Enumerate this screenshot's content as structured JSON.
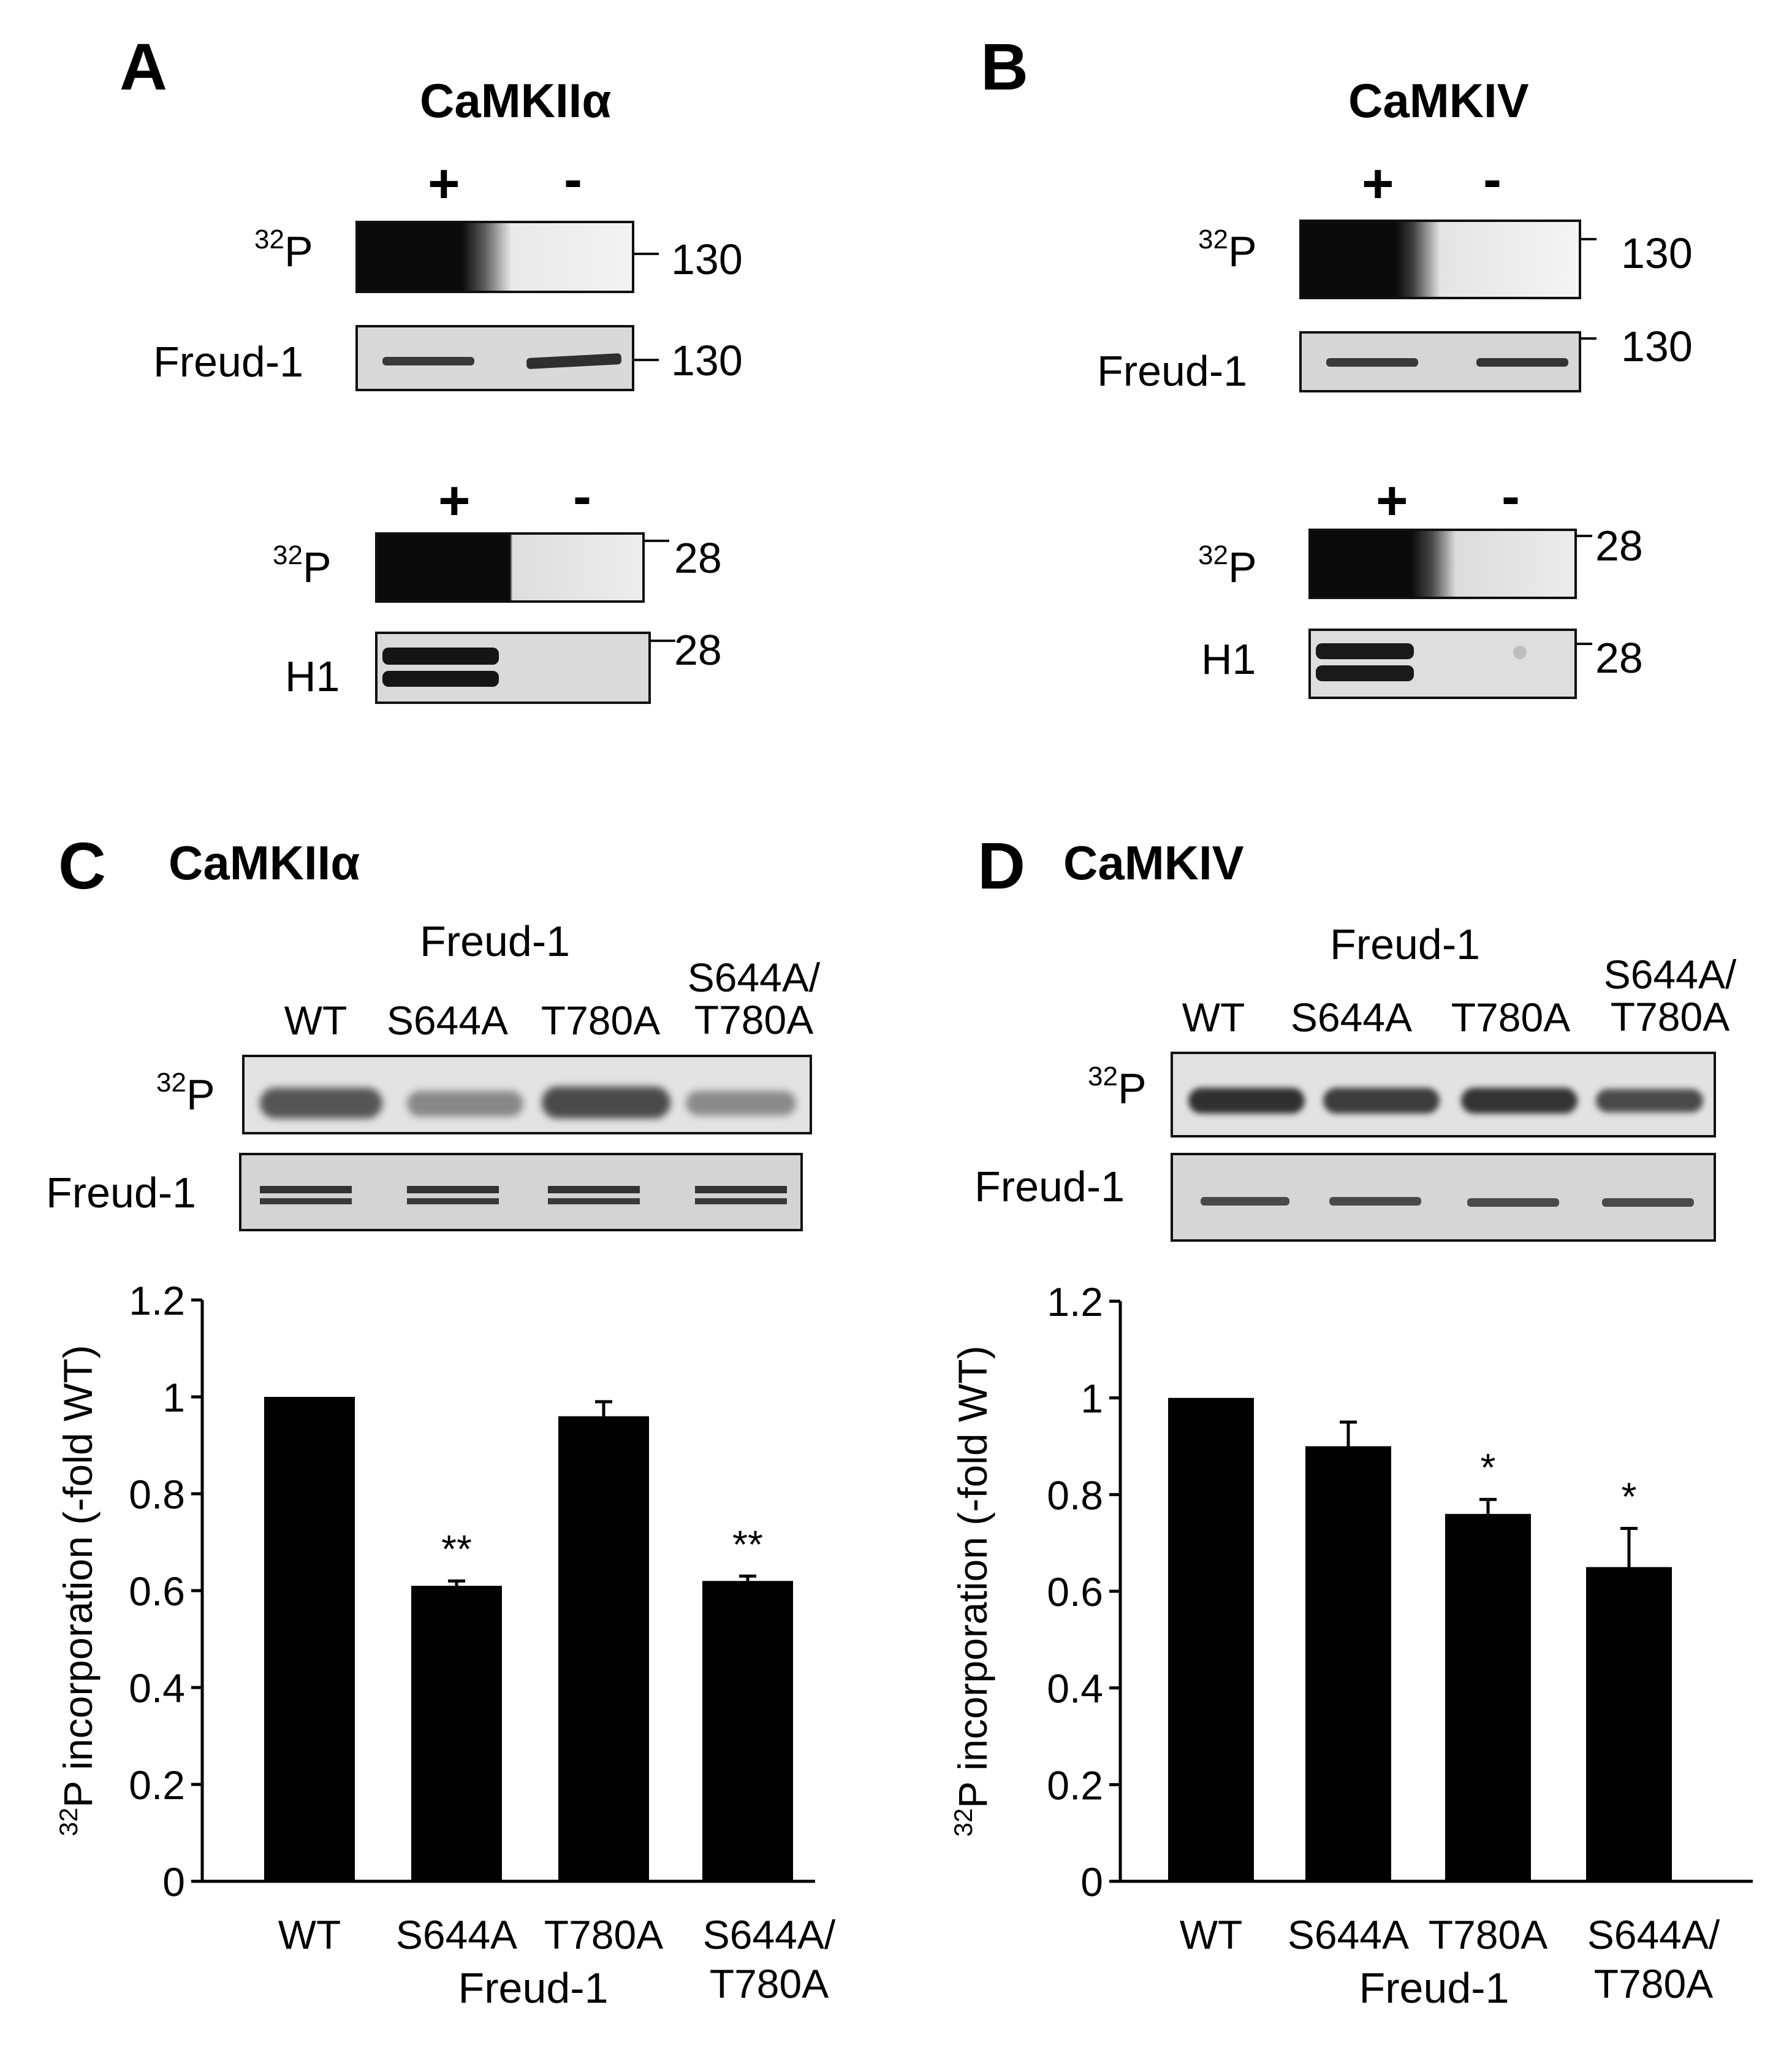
{
  "panel_A": {
    "letter": "A",
    "kinase": "CaMKIIα",
    "signs": [
      "+",
      "-"
    ],
    "rows": [
      {
        "label_sup": "32",
        "label": "P",
        "mw": "130"
      },
      {
        "label_sup": "",
        "label": "Freud-1",
        "mw": "130"
      },
      {
        "label_sup": "32",
        "label": "P",
        "mw": "28"
      },
      {
        "label_sup": "",
        "label": "H1",
        "mw": "28"
      }
    ]
  },
  "panel_B": {
    "letter": "B",
    "kinase": "CaMKIV",
    "signs": [
      "+",
      "-"
    ],
    "rows": [
      {
        "label_sup": "32",
        "label": "P",
        "mw": "130"
      },
      {
        "label_sup": "",
        "label": "Freud-1",
        "mw": "130"
      },
      {
        "label_sup": "32",
        "label": "P",
        "mw": "28"
      },
      {
        "label_sup": "",
        "label": "H1",
        "mw": "28"
      }
    ]
  },
  "panel_C": {
    "letter": "C",
    "kinase": "CaMKIIα",
    "blot_group": "Freud-1",
    "lanes": [
      "WT",
      "S644A",
      "T780A",
      "S644A/\nT780A"
    ],
    "row_labels": [
      {
        "sup": "32",
        "text": "P"
      },
      {
        "sup": "",
        "text": "Freud-1"
      }
    ]
  },
  "panel_D": {
    "letter": "D",
    "kinase": "CaMKIV",
    "blot_group": "Freud-1",
    "lanes": [
      "WT",
      "S644A",
      "T780A",
      "S644A/\nT780A"
    ],
    "row_labels": [
      {
        "sup": "32",
        "text": "P"
      },
      {
        "sup": "",
        "text": "Freud-1"
      }
    ]
  },
  "chart_data": [
    {
      "type": "bar",
      "panel": "C",
      "categories": [
        "WT",
        "S644A",
        "T780A",
        "S644A/\nT780A"
      ],
      "values": [
        1.0,
        0.61,
        0.96,
        0.62
      ],
      "errors": [
        0.0,
        0.01,
        0.03,
        0.01
      ],
      "annotations": [
        "",
        "**",
        "",
        "**"
      ],
      "xlabel": "Freud-1",
      "ylabel_sup": "32",
      "ylabel": "P incorporation (-fold WT)",
      "ylim": [
        0,
        1.2
      ],
      "yticks": [
        0,
        0.2,
        0.4,
        0.6,
        0.8,
        1,
        1.2
      ],
      "ytick_labels": [
        "0",
        "0.2",
        "0.4",
        "0.6",
        "0.8",
        "1",
        "1.2"
      ],
      "bar_color": "#000000"
    },
    {
      "type": "bar",
      "panel": "D",
      "categories": [
        "WT",
        "S644A",
        "T780A",
        "S644A/\nT780A"
      ],
      "values": [
        1.0,
        0.9,
        0.76,
        0.65
      ],
      "errors": [
        0.0,
        0.05,
        0.03,
        0.08
      ],
      "annotations": [
        "",
        "",
        "*",
        "*"
      ],
      "xlabel": "Freud-1",
      "ylabel_sup": "32",
      "ylabel": "P incorporation (-fold WT)",
      "ylim": [
        0,
        1.2
      ],
      "yticks": [
        0,
        0.2,
        0.4,
        0.6,
        0.8,
        1,
        1.2
      ],
      "ytick_labels": [
        "0",
        "0.2",
        "0.4",
        "0.6",
        "0.8",
        "1",
        "1.2"
      ],
      "bar_color": "#000000"
    }
  ]
}
